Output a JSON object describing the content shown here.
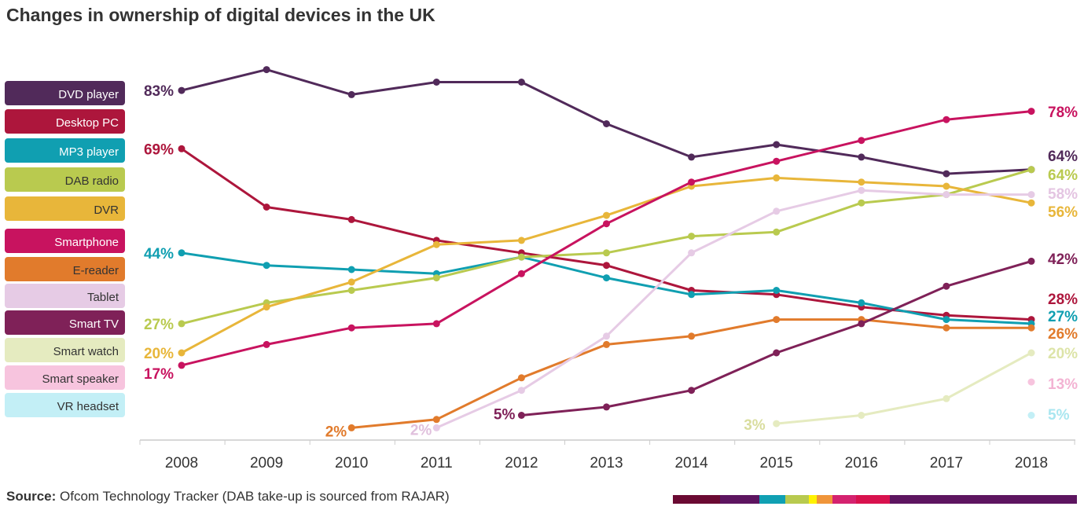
{
  "chart_data": {
    "type": "line",
    "title": "Changes in ownership of digital devices in the UK",
    "source_label": "Source:",
    "source_text": "Ofcom Technology Tracker (DAB take-up is sourced from RAJAR)",
    "x": [
      2008,
      2009,
      2010,
      2011,
      2012,
      2013,
      2014,
      2015,
      2016,
      2017,
      2018
    ],
    "ylim": [
      0,
      100
    ],
    "unit": "%",
    "legend_position": "left",
    "series": [
      {
        "name": "DVD player",
        "color": "#512a5a",
        "text": "#fff",
        "values": [
          83,
          88,
          82,
          85,
          85,
          75,
          67,
          70,
          67,
          63,
          64
        ],
        "start_label": "83%",
        "end_label": "64%"
      },
      {
        "name": "Desktop PC",
        "color": "#ad163c",
        "text": "#fff",
        "values": [
          69,
          55,
          52,
          47,
          44,
          41,
          35,
          34,
          31,
          29,
          28
        ],
        "start_label": "69%",
        "end_label": "28%"
      },
      {
        "name": "MP3 player",
        "color": "#109fb1",
        "text": "#fff",
        "values": [
          44,
          41,
          40,
          39,
          43,
          38,
          34,
          35,
          32,
          28,
          27
        ],
        "start_label": "44%",
        "end_label": "27%"
      },
      {
        "name": "DAB radio",
        "color": "#b9ca4f",
        "text": "#333",
        "values": [
          27,
          32,
          35,
          38,
          43,
          44,
          48,
          49,
          56,
          58,
          64
        ],
        "start_label": "27%",
        "end_label": "64%"
      },
      {
        "name": "DVR",
        "color": "#e8b63a",
        "text": "#333",
        "values": [
          20,
          31,
          37,
          46,
          47,
          53,
          60,
          62,
          61,
          60,
          56
        ],
        "start_label": "20%",
        "end_label": "56%"
      },
      {
        "name": "Smartphone",
        "color": "#c8135f",
        "text": "#fff",
        "values": [
          17,
          22,
          26,
          27,
          39,
          51,
          61,
          66,
          71,
          76,
          78
        ],
        "start_label": "17%",
        "end_label": "78%"
      },
      {
        "name": "E-reader",
        "color": "#e17b2c",
        "text": "#333",
        "values": [
          null,
          null,
          2,
          4,
          14,
          22,
          24,
          28,
          28,
          26,
          26
        ],
        "start_label": "2%",
        "end_label": "26%"
      },
      {
        "name": "Tablet",
        "color": "#e6cbe5",
        "text": "#333",
        "values": [
          null,
          null,
          null,
          2,
          11,
          24,
          44,
          54,
          59,
          58,
          58
        ],
        "start_label": "2%",
        "end_label": "58%"
      },
      {
        "name": "Smart TV",
        "color": "#7f2158",
        "text": "#fff",
        "values": [
          null,
          null,
          null,
          null,
          5,
          7,
          11,
          20,
          27,
          36,
          42
        ],
        "start_label": "5%",
        "end_label": "42%"
      },
      {
        "name": "Smart watch",
        "color": "#e5ebc0",
        "text": "#333",
        "values": [
          null,
          null,
          null,
          null,
          null,
          null,
          null,
          3,
          5,
          9,
          20
        ],
        "start_label": "3%",
        "end_label": "20%"
      },
      {
        "name": "Smart speaker",
        "color": "#f7c4de",
        "text": "#333",
        "values": [
          null,
          null,
          null,
          null,
          null,
          null,
          null,
          null,
          null,
          null,
          13
        ],
        "start_label": null,
        "end_label": "13%"
      },
      {
        "name": "VR headset",
        "color": "#c3eff6",
        "text": "#333",
        "values": [
          null,
          null,
          null,
          null,
          null,
          null,
          null,
          null,
          null,
          null,
          5
        ],
        "start_label": null,
        "end_label": "5%"
      }
    ],
    "footer_colors": [
      "#6b0a33",
      "#5d1560",
      "#5d1560",
      "#10a0b3",
      "#b8ca4f",
      "#fff200",
      "#f0953a",
      "#d4226f",
      "#d8124e",
      "#5d1560"
    ]
  }
}
